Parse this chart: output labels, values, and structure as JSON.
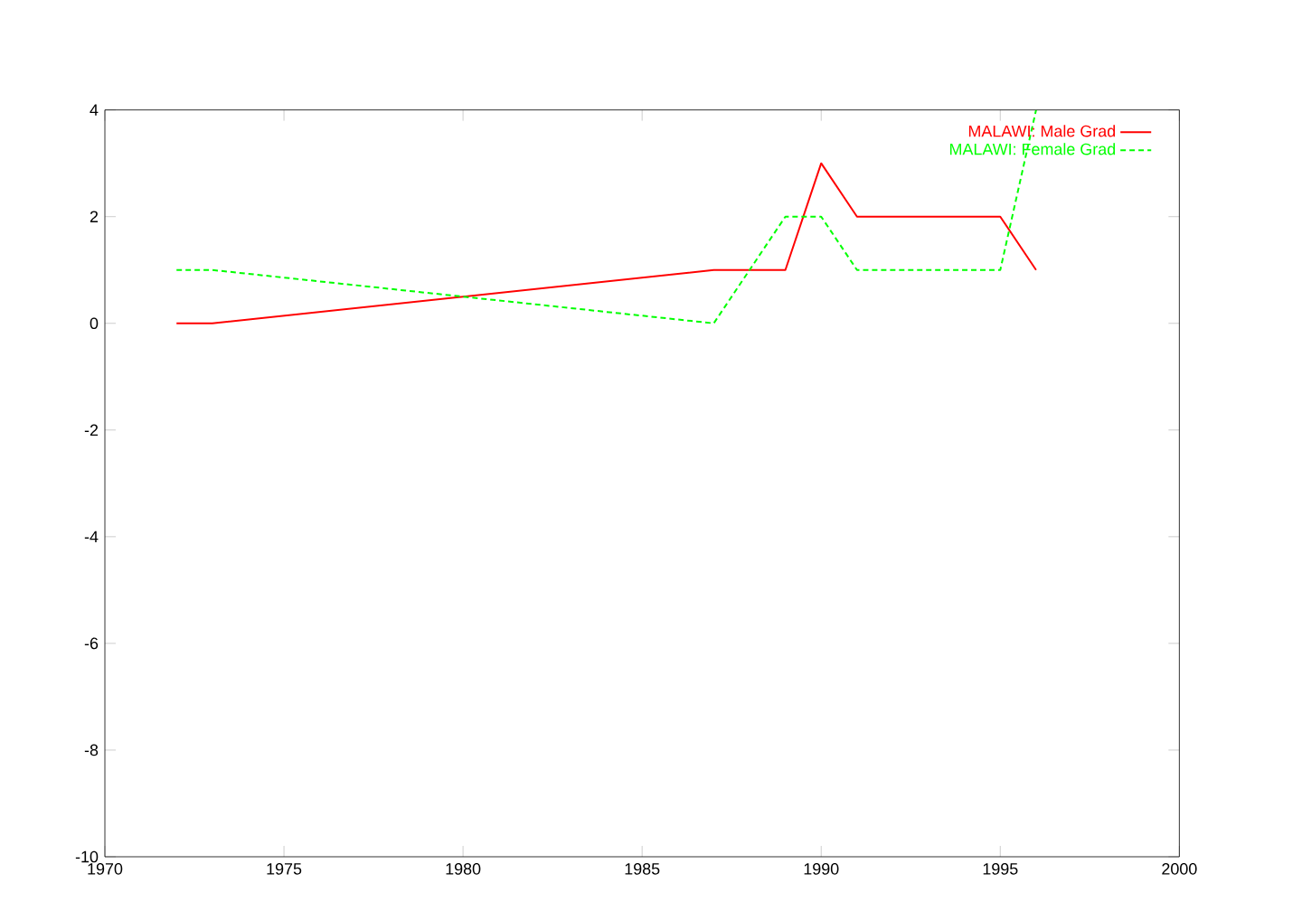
{
  "chart_data": {
    "type": "line",
    "xlim": [
      1970,
      2000
    ],
    "ylim": [
      -10,
      4
    ],
    "xticks": [
      1970,
      1975,
      1980,
      1985,
      1990,
      1995,
      2000
    ],
    "yticks": [
      -10,
      -8,
      -6,
      -4,
      -2,
      0,
      2,
      4
    ],
    "grid": false,
    "legend": "top right",
    "marker": "none",
    "series": [
      {
        "name": "MALAWI: Male Grad",
        "color": "#ff0000",
        "line_style": "solid",
        "x": [
          1972,
          1973,
          1987,
          1989,
          1990,
          1991,
          1995,
          1996
        ],
        "values": [
          0,
          0,
          1,
          1,
          3,
          2,
          2,
          1
        ]
      },
      {
        "name": "MALAWI: Female Grad",
        "color": "#00ff00",
        "line_style": "dashed",
        "x": [
          1972,
          1973,
          1987,
          1989,
          1990,
          1991,
          1995,
          1996
        ],
        "values": [
          1,
          1,
          0,
          2,
          2,
          1,
          1,
          4
        ]
      }
    ]
  }
}
